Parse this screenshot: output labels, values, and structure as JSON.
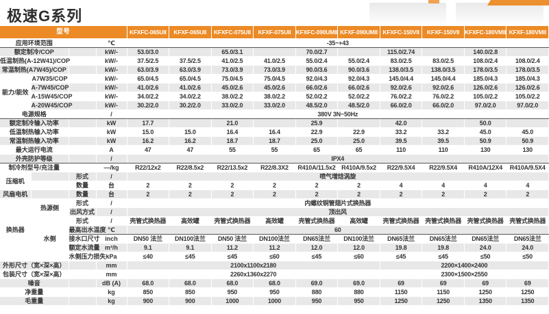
{
  "title": "极速G系列",
  "colors": {
    "header_orange": "#EC8A25",
    "row_stripe_gray": "#E8E8E8",
    "dark_divider": "#555555"
  },
  "header": {
    "model_label": "型号",
    "models": [
      "KFXFC-065UII",
      "KFXF-065UII",
      "KFXFC-075UII",
      "KFXF-075UII",
      "KFXFC-090UMII",
      "KFXF-090UMII",
      "KFXFC-150VII",
      "KFXF-150VII",
      "KFXFC-180VMII",
      "KFXF-180VMII"
    ]
  },
  "rows": [
    {
      "label": "应用环境范围",
      "unit": "℃",
      "span": "-35~+43",
      "dark": true
    },
    {
      "label": "额定制冷/COP",
      "unit": "kW/-",
      "cells": [
        "53.0/3.0",
        "",
        "65.0/3.1",
        "",
        "70.0/2.7",
        "",
        "115.0/2.74",
        "",
        "140.0/2.8",
        ""
      ]
    },
    {
      "label": "低温制热(A-12W41)/COP",
      "unit": "kW/-",
      "cells": [
        "37.5/2.5",
        "37.5/2.5",
        "41.0/2.5",
        "41.0/2.5",
        "55.0/2.4",
        "55.0/2.4",
        "83.0/2.5",
        "83.0/2.5",
        "108.0/2.4",
        "108.0/2.4"
      ]
    },
    {
      "label": "常温制热(A7W45)/COP",
      "unit": "kW/-",
      "cells": [
        "63.0/3.9",
        "63.0/3.9",
        "73.0/3.9",
        "73.0/3.9",
        "90.0/3.6",
        "90.0/3.6",
        "138.0/3.5",
        "138.0/3.5",
        "178.0/3.5",
        "178.0/3.5"
      ]
    },
    {
      "g1": "能力/能效",
      "g1span": 4,
      "labelcol": "B",
      "label": "A7W35/COP",
      "unit": "kW/-",
      "cells": [
        "65.0/4.5",
        "65.0/4.5",
        "75.0/4.5",
        "75.0/4.5",
        "92.0/4.3",
        "92.0/4.3",
        "145.0/4.4",
        "145.0/4.4",
        "185.0/4.3",
        "185.0/4.3"
      ]
    },
    {
      "labelcol": "B",
      "label": "A-7W45/COP",
      "unit": "kW/-",
      "cells": [
        "41.0/2.6",
        "41.0/2.6",
        "45.0/2.6",
        "45.0/2.6",
        "66.0/2.6",
        "66.0/2.6",
        "92.0/2.6",
        "92.0/2.6",
        "126.0/2.6",
        "126.0/2.6"
      ]
    },
    {
      "labelcol": "B",
      "label": "A-15W45/COP",
      "unit": "kW/-",
      "cells": [
        "34.0/2.2",
        "34.0/2.2",
        "38.0/2.2",
        "38.0/2.2",
        "52.0/2.2",
        "52.0/2.2",
        "76.0/2.2",
        "76.0/2.2",
        "105.0/2.2",
        "105.0/2.2"
      ]
    },
    {
      "labelcol": "B",
      "label": "A-20W45/COP",
      "unit": "kW/-",
      "cells": [
        "30.2/2.0",
        "30.2/2.0",
        "33.0/2.0",
        "33.0/2.0",
        "48.5/2.0",
        "48.5/2.0",
        "66.0/2.0",
        "66.0/2.0",
        "97.0/2.0",
        "97.0/2.0"
      ]
    },
    {
      "label": "电源规格",
      "unit": "/",
      "span": "380V 3N~50Hz",
      "dark": true
    },
    {
      "label": "额定制冷输入功率",
      "unit": "kW",
      "cells": [
        "17.7",
        "",
        "21.0",
        "",
        "25.9",
        "",
        "42.0",
        "",
        "50.0",
        ""
      ]
    },
    {
      "label": "低温制热输入功率",
      "unit": "kW",
      "cells": [
        "15.0",
        "15.0",
        "16.4",
        "16.4",
        "22.9",
        "22.9",
        "33.2",
        "33.2",
        "45.0",
        "45.0"
      ]
    },
    {
      "label": "常温制热输入功率",
      "unit": "kW",
      "cells": [
        "16.2",
        "16.2",
        "18.7",
        "18.7",
        "25.0",
        "25.0",
        "39.5",
        "39.5",
        "50.9",
        "50.9"
      ]
    },
    {
      "label": "最大运行电流",
      "unit": "A",
      "cells": [
        "47",
        "47",
        "55",
        "55",
        "65",
        "65",
        "110",
        "110",
        "130",
        "130"
      ]
    },
    {
      "label": "外壳防护等级",
      "unit": "/",
      "span": "IPX4",
      "dark": true
    },
    {
      "label": "制冷剂型号/充注量",
      "unit": "—/kg",
      "cells": [
        "R22/12x2",
        "R22/8.5x2",
        "R22/13.5x2",
        "R22/8.3X2",
        "R410A/11.5x2",
        "R410A/9.5x2",
        "R22/9.5X4",
        "R22/9.5X4",
        "R410A/12X4",
        "R410A/9.5X4"
      ]
    },
    {
      "g1": "压缩机",
      "g1span": 2,
      "labelcol": "C",
      "label": "形式",
      "unit": "/",
      "span": "喷气增焓涡旋"
    },
    {
      "labelcol": "C",
      "label": "数量",
      "unit": "台",
      "cells": [
        "2",
        "2",
        "2",
        "2",
        "2",
        "2",
        "4",
        "4",
        "4",
        "4"
      ]
    },
    {
      "g1": "风扇电机",
      "g1span": 1,
      "labelcol": "C",
      "label": "数量",
      "unit": "台",
      "cells": [
        "2",
        "2",
        "2",
        "2",
        "2",
        "2",
        "2",
        "2",
        "2",
        "2"
      ]
    },
    {
      "g1": "换热器",
      "g1span": 7,
      "g2": "热源侧",
      "g2span": 2,
      "labelcol": "C",
      "label": "形式",
      "unit": "/",
      "span": "内螺纹铜管翅片式换热器"
    },
    {
      "labelcol": "C",
      "label": "出风方式",
      "unit": "/",
      "span": "顶出风"
    },
    {
      "g2": "水侧",
      "g2span": 5,
      "labelcol": "C",
      "label": "形式",
      "unit": "/",
      "cells": [
        "壳管式换热器",
        "高效罐",
        "壳管式换热器",
        "高效罐",
        "壳管式换热器",
        "高效罐",
        "壳管式换热器",
        "壳管式换热器",
        "壳管式换热器",
        "壳管式换热器"
      ]
    },
    {
      "labelcol": "C",
      "label": "最高出水温度",
      "unit": "℃",
      "span": "60",
      "dark": true
    },
    {
      "labelcol": "C",
      "label": "接水口尺寸",
      "unit": "inch",
      "cells": [
        "DN50 法兰",
        "DN100法兰",
        "DN50 法兰",
        "DN100法兰",
        "DN65法兰",
        "DN100法兰",
        "DN65法兰",
        "DN65法兰",
        "DN65法兰",
        "DN65法兰"
      ]
    },
    {
      "labelcol": "C",
      "label": "额定水流量",
      "unit": "m³/h",
      "cells": [
        "9.1",
        "9.1",
        "11.2",
        "11.2",
        "12.0",
        "12.0",
        "19.8",
        "19.8",
        "24.0",
        "24.0"
      ]
    },
    {
      "labelcol": "C",
      "label": "水侧压力损失",
      "unit": "kPa",
      "cells": [
        "≤40",
        "≤45",
        "≤45",
        "≤60",
        "≤45",
        "≤60",
        "≤45",
        "≤45",
        "≤50",
        "≤50"
      ]
    },
    {
      "label": "外形尺寸（宽×深×高）",
      "unit": "mm",
      "spans": [
        {
          "text": "2100x1100x2180",
          "cols": 6
        },
        {
          "text": "2200×1400×2400",
          "cols": 4
        }
      ]
    },
    {
      "label": "包装尺寸（宽×深×高）",
      "unit": "mm",
      "spans": [
        {
          "text": "2260x1360x2270",
          "cols": 6
        },
        {
          "text": "2300×1500×2550",
          "cols": 4
        }
      ]
    },
    {
      "label": "噪音",
      "unit": "dB (A)",
      "cells": [
        "68.0",
        "68.0",
        "68.0",
        "68.0",
        "69.0",
        "69.0",
        "69",
        "69",
        "69",
        "69"
      ]
    },
    {
      "label": "净重量",
      "unit": "kg",
      "cells": [
        "850",
        "850",
        "950",
        "950",
        "880",
        "880",
        "1150",
        "1150",
        "1250",
        "1250"
      ]
    },
    {
      "label": "毛重量",
      "unit": "kg",
      "cells": [
        "900",
        "900",
        "1000",
        "1000",
        "950",
        "950",
        "1250",
        "1250",
        "1350",
        "1350"
      ]
    }
  ]
}
